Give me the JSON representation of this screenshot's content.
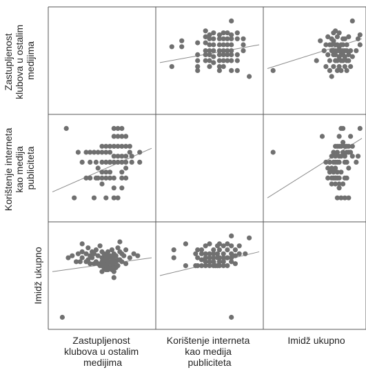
{
  "chart_data": {
    "type": "scatter-matrix",
    "variables": [
      [
        "Zastupljenost",
        "klubova u ostalim",
        "medijima"
      ],
      [
        "Korištenje interneta",
        "kao medija",
        "publiciteta"
      ],
      [
        "Imidž ukupno"
      ]
    ],
    "axis_range": [
      0.5,
      5.5
    ],
    "grid": false,
    "colors": {
      "point": "#707070",
      "fit_line": "#8a8a8a",
      "frame": "#555555"
    },
    "fit_lines": [
      {
        "row": 0,
        "col": 1,
        "x": [
          0.5,
          5.5
        ],
        "y": [
          2.9,
          3.8
        ]
      },
      {
        "row": 0,
        "col": 2,
        "x": [
          0.5,
          5.5
        ],
        "y": [
          2.6,
          4.1
        ]
      },
      {
        "row": 1,
        "col": 0,
        "x": [
          0.5,
          5.5
        ],
        "y": [
          1.8,
          4.0
        ]
      },
      {
        "row": 1,
        "col": 2,
        "x": [
          0.5,
          5.5
        ],
        "y": [
          1.5,
          4.5
        ]
      },
      {
        "row": 2,
        "col": 0,
        "x": [
          0.5,
          5.5
        ],
        "y": [
          3.2,
          3.9
        ]
      },
      {
        "row": 2,
        "col": 1,
        "x": [
          0.5,
          5.5
        ],
        "y": [
          3.0,
          4.2
        ]
      }
    ],
    "points": [
      {
        "row": 0,
        "col": 1,
        "x": [
          1.1,
          1.1,
          1.6,
          1.6,
          2.4,
          2.4,
          2.4,
          2.4,
          2.4,
          2.8,
          2.8,
          2.8,
          2.8,
          2.8,
          2.8,
          3.0,
          3.0,
          3.0,
          3.0,
          3.0,
          3.0,
          3.0,
          3.2,
          3.2,
          3.2,
          3.2,
          3.2,
          3.2,
          3.5,
          3.5,
          3.5,
          3.5,
          3.5,
          3.5,
          3.5,
          3.5,
          3.7,
          3.7,
          3.7,
          3.7,
          3.7,
          3.7,
          3.7,
          3.9,
          3.9,
          3.9,
          3.9,
          3.9,
          3.9,
          4.1,
          4.1,
          4.1,
          4.1,
          4.1,
          4.1,
          4.1,
          4.1,
          4.4,
          4.4,
          4.4,
          4.4,
          4.4,
          4.7,
          4.7,
          4.7,
          5.0
        ],
        "y": [
          2.7,
          3.7,
          3.7,
          4.0,
          2.5,
          2.7,
          3.0,
          3.3,
          3.9,
          3.0,
          3.3,
          3.5,
          3.9,
          4.2,
          4.5,
          2.7,
          3.0,
          3.3,
          3.5,
          3.8,
          4.1,
          4.3,
          2.9,
          3.2,
          3.5,
          3.8,
          4.1,
          4.4,
          2.5,
          2.7,
          3.0,
          3.3,
          3.5,
          3.8,
          4.1,
          4.3,
          2.7,
          3.0,
          3.3,
          3.5,
          3.8,
          4.1,
          4.4,
          3.0,
          3.3,
          3.5,
          3.8,
          4.1,
          4.4,
          2.5,
          3.0,
          3.3,
          3.5,
          3.8,
          4.1,
          4.3,
          5.0,
          2.5,
          3.0,
          3.3,
          4.1,
          4.4,
          3.5,
          3.8,
          4.1,
          2.2
        ]
      },
      {
        "row": 0,
        "col": 2,
        "x": [
          0.8,
          3.1,
          3.3,
          3.5,
          3.6,
          3.6,
          3.7,
          3.7,
          3.8,
          3.8,
          3.8,
          3.9,
          3.9,
          3.9,
          3.9,
          4.0,
          4.0,
          4.0,
          4.0,
          4.0,
          4.1,
          4.1,
          4.1,
          4.1,
          4.1,
          4.2,
          4.2,
          4.2,
          4.2,
          4.2,
          4.3,
          4.3,
          4.3,
          4.3,
          4.3,
          4.4,
          4.4,
          4.4,
          4.4,
          4.4,
          4.5,
          4.5,
          4.5,
          4.5,
          4.5,
          4.6,
          4.6,
          4.6,
          4.6,
          4.7,
          4.7,
          4.7,
          4.7,
          4.8,
          4.8,
          4.8,
          4.9,
          4.9,
          5.0,
          5.0,
          5.2,
          5.3,
          5.4,
          5.4
        ],
        "y": [
          2.5,
          3.0,
          4.0,
          3.5,
          2.7,
          3.8,
          3.3,
          4.2,
          2.5,
          3.0,
          3.8,
          2.2,
          3.5,
          3.8,
          4.1,
          2.7,
          3.3,
          3.5,
          4.0,
          4.4,
          3.0,
          3.3,
          3.5,
          3.8,
          4.5,
          2.5,
          3.0,
          3.5,
          3.8,
          4.2,
          2.7,
          3.2,
          3.5,
          3.7,
          4.4,
          2.5,
          3.0,
          3.3,
          3.5,
          3.8,
          3.0,
          3.3,
          3.5,
          3.8,
          4.1,
          2.7,
          3.2,
          3.5,
          4.1,
          2.5,
          3.0,
          3.5,
          3.8,
          3.0,
          3.3,
          4.2,
          2.7,
          3.5,
          3.2,
          5.0,
          3.5,
          4.1,
          3.8,
          4.3
        ]
      },
      {
        "row": 1,
        "col": 0,
        "x": [
          1.2,
          1.8,
          2.0,
          2.2,
          2.2,
          2.4,
          2.4,
          2.4,
          2.6,
          2.6,
          2.7,
          2.7,
          2.8,
          2.8,
          2.8,
          3.0,
          3.0,
          3.0,
          3.0,
          3.0,
          3.0,
          3.2,
          3.2,
          3.2,
          3.2,
          3.2,
          3.4,
          3.4,
          3.4,
          3.4,
          3.4,
          3.6,
          3.6,
          3.6,
          3.6,
          3.6,
          3.6,
          3.8,
          3.8,
          3.8,
          3.8,
          3.8,
          4.0,
          4.0,
          4.0,
          4.0,
          4.0,
          4.0,
          4.2,
          4.2,
          4.2,
          4.2,
          4.2,
          4.5,
          4.5,
          4.9,
          4.9,
          4.4,
          4.4,
          3.2,
          3.4,
          3.6,
          3.8,
          4.0,
          4.2,
          1.6,
          3.6,
          4.0
        ],
        "y": [
          5.0,
          3.8,
          3.3,
          3.8,
          2.5,
          3.8,
          3.3,
          2.5,
          1.5,
          3.8,
          3.3,
          2.5,
          3.8,
          3.0,
          2.5,
          4.1,
          3.8,
          3.3,
          2.8,
          2.5,
          2.2,
          4.1,
          3.8,
          3.3,
          2.8,
          2.5,
          4.1,
          3.8,
          3.3,
          2.8,
          2.5,
          5.0,
          4.6,
          4.1,
          3.6,
          3.3,
          2.5,
          5.0,
          4.6,
          4.1,
          3.6,
          3.3,
          5.0,
          4.6,
          4.1,
          3.6,
          3.3,
          2.5,
          4.6,
          4.1,
          3.6,
          3.3,
          2.5,
          3.6,
          3.3,
          3.8,
          3.3,
          4.1,
          3.8,
          1.5,
          3.3,
          1.5,
          1.5,
          2.8,
          3.0,
          1.5,
          2.0,
          2.0
        ]
      },
      {
        "row": 1,
        "col": 2,
        "x": [
          0.8,
          3.4,
          3.6,
          3.7,
          3.8,
          3.8,
          3.9,
          3.9,
          3.9,
          4.0,
          4.0,
          4.0,
          4.0,
          4.1,
          4.1,
          4.1,
          4.1,
          4.1,
          4.2,
          4.2,
          4.2,
          4.2,
          4.2,
          4.3,
          4.3,
          4.3,
          4.3,
          4.3,
          4.4,
          4.4,
          4.4,
          4.4,
          4.5,
          4.5,
          4.5,
          4.6,
          4.6,
          4.6,
          4.6,
          4.7,
          4.7,
          4.7,
          4.8,
          4.8,
          4.8,
          4.9,
          4.9,
          5.0,
          5.0,
          5.2,
          5.3,
          5.4,
          3.7,
          3.9,
          4.1,
          4.3,
          4.5,
          4.2,
          4.4,
          4.6,
          4.8,
          4.1,
          4.3,
          4.7
        ],
        "y": [
          3.8,
          4.6,
          3.3,
          2.5,
          3.3,
          2.8,
          3.6,
          2.5,
          3.0,
          3.8,
          2.8,
          2.5,
          3.3,
          4.1,
          3.6,
          3.3,
          3.0,
          2.5,
          4.1,
          3.8,
          3.3,
          2.8,
          2.5,
          4.6,
          4.1,
          3.6,
          3.3,
          2.5,
          5.0,
          4.1,
          3.6,
          2.8,
          5.0,
          4.3,
          3.8,
          4.1,
          3.6,
          3.3,
          2.5,
          4.1,
          3.8,
          3.3,
          4.1,
          3.8,
          3.0,
          4.6,
          3.8,
          4.1,
          3.6,
          3.3,
          3.6,
          5.0,
          3.0,
          2.2,
          2.2,
          2.0,
          2.2,
          1.5,
          1.5,
          1.5,
          1.5,
          2.5,
          2.2,
          2.5
        ]
      },
      {
        "row": 2,
        "col": 0,
        "x": [
          1.0,
          1.3,
          1.5,
          1.7,
          1.8,
          1.9,
          2.0,
          2.0,
          2.2,
          2.2,
          2.3,
          2.3,
          2.4,
          2.4,
          2.5,
          2.5,
          2.6,
          2.6,
          2.7,
          2.7,
          2.8,
          2.8,
          2.9,
          2.9,
          3.0,
          3.0,
          3.0,
          3.0,
          3.0,
          3.1,
          3.1,
          3.1,
          3.1,
          3.2,
          3.2,
          3.2,
          3.2,
          3.3,
          3.3,
          3.3,
          3.3,
          3.4,
          3.4,
          3.4,
          3.5,
          3.5,
          3.5,
          3.5,
          3.6,
          3.6,
          3.6,
          3.6,
          3.7,
          3.7,
          3.7,
          3.8,
          3.8,
          3.8,
          3.9,
          3.9,
          4.0,
          4.0,
          4.1,
          4.2,
          4.2,
          4.4,
          4.6,
          4.8,
          2.0,
          3.6,
          3.9
        ],
        "y": [
          0.9,
          3.9,
          4.0,
          3.7,
          4.1,
          3.7,
          4.2,
          3.9,
          4.1,
          3.7,
          4.4,
          3.8,
          4.0,
          3.6,
          4.2,
          3.9,
          4.1,
          3.6,
          4.3,
          3.7,
          4.0,
          3.6,
          4.5,
          3.5,
          4.2,
          3.9,
          3.7,
          3.5,
          3.2,
          4.1,
          3.8,
          3.6,
          3.4,
          4.0,
          3.7,
          3.5,
          3.3,
          4.2,
          3.9,
          3.6,
          3.3,
          4.0,
          3.7,
          3.4,
          4.3,
          3.9,
          3.6,
          3.3,
          4.1,
          3.8,
          3.5,
          3.2,
          4.0,
          3.7,
          3.4,
          4.4,
          3.8,
          3.5,
          4.2,
          3.8,
          4.1,
          3.7,
          4.0,
          4.3,
          3.6,
          3.9,
          4.1,
          4.0,
          4.6,
          2.9,
          4.7
        ],
        "__note": ""
      },
      {
        "row": 2,
        "col": 1,
        "x": [
          1.2,
          1.2,
          1.8,
          1.8,
          2.3,
          2.3,
          2.4,
          2.4,
          2.4,
          2.6,
          2.6,
          2.6,
          2.6,
          2.8,
          2.8,
          2.8,
          2.8,
          2.8,
          3.0,
          3.0,
          3.0,
          3.0,
          3.0,
          3.2,
          3.2,
          3.2,
          3.2,
          3.2,
          3.4,
          3.4,
          3.4,
          3.4,
          3.5,
          3.5,
          3.5,
          3.5,
          3.5,
          3.7,
          3.7,
          3.7,
          3.7,
          3.7,
          3.9,
          3.9,
          3.9,
          3.9,
          4.1,
          4.1,
          4.1,
          4.1,
          4.1,
          4.3,
          4.3,
          4.3,
          4.5,
          4.5,
          4.8,
          5.0,
          3.3,
          3.9,
          4.1
        ],
        "y": [
          4.3,
          3.9,
          4.6,
          3.5,
          3.5,
          4.1,
          4.3,
          3.9,
          3.5,
          4.3,
          4.1,
          3.8,
          3.5,
          4.5,
          4.1,
          3.9,
          3.7,
          3.5,
          4.6,
          4.1,
          3.9,
          3.7,
          3.5,
          4.3,
          4.1,
          3.9,
          3.7,
          3.5,
          4.5,
          4.1,
          3.9,
          3.5,
          4.6,
          4.3,
          3.9,
          3.7,
          3.5,
          4.5,
          4.1,
          3.9,
          3.7,
          3.5,
          4.6,
          4.3,
          3.9,
          3.5,
          5.0,
          4.5,
          4.1,
          3.9,
          3.7,
          4.3,
          4.0,
          3.6,
          4.5,
          4.1,
          4.1,
          4.9,
          3.5,
          3.9,
          0.9
        ]
      }
    ]
  }
}
